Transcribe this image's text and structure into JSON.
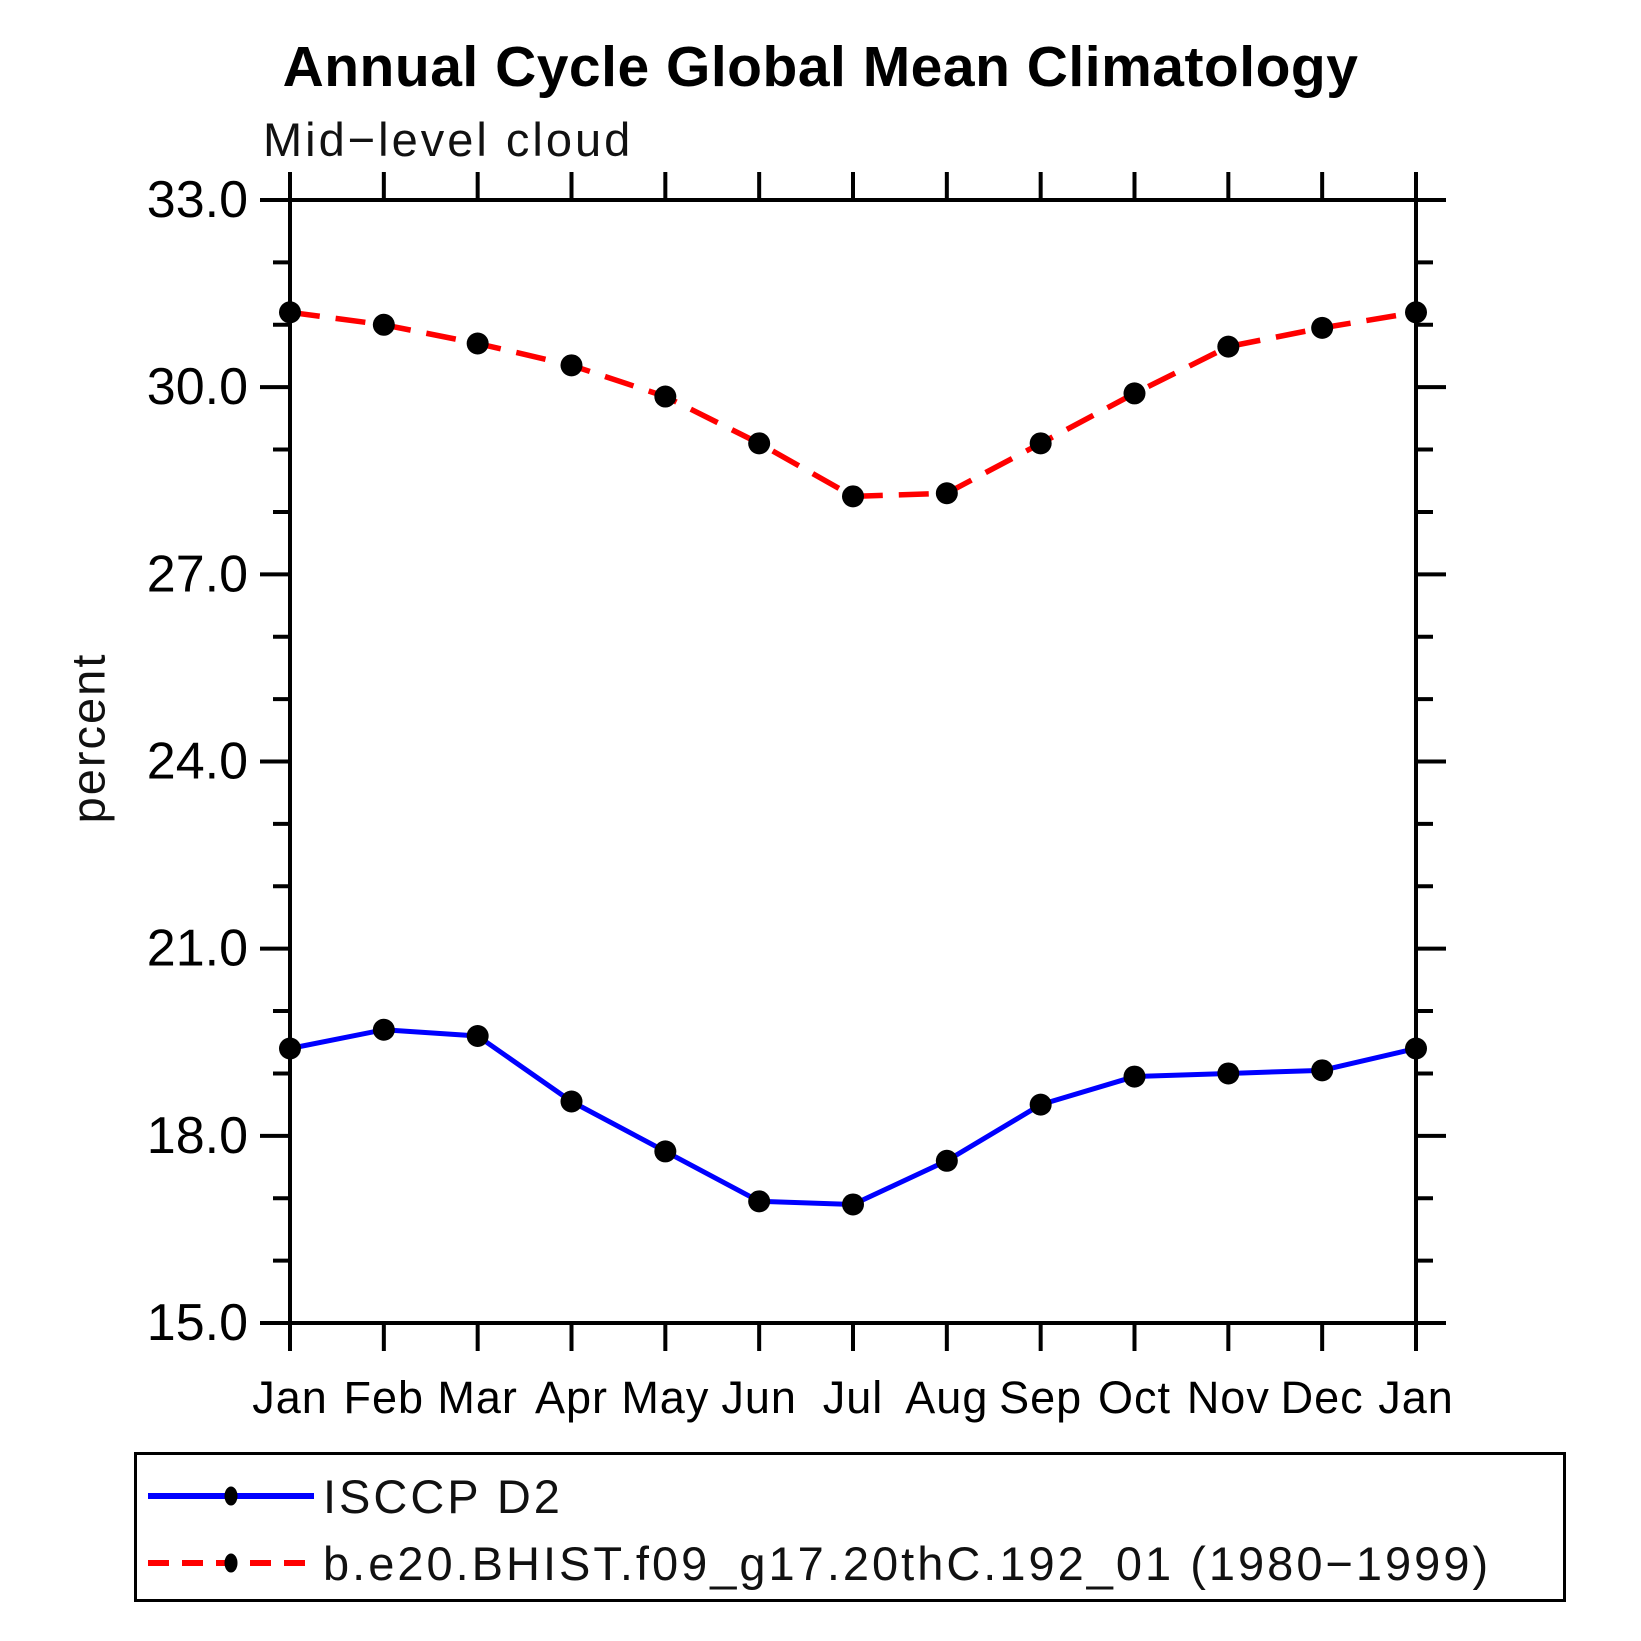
{
  "chart_data": {
    "type": "line",
    "title": "Annual Cycle Global Mean Climatology",
    "subtitle": "Mid−level cloud",
    "ylabel": "percent",
    "x_tick_labels": [
      "Jan",
      "Feb",
      "Mar",
      "Apr",
      "May",
      "Jun",
      "Jul",
      "Aug",
      "Sep",
      "Oct",
      "Nov",
      "Dec",
      "Jan"
    ],
    "ylim": [
      15.0,
      33.0
    ],
    "y_major_ticks": [
      15,
      18,
      21,
      24,
      27,
      30,
      33
    ],
    "y_tick_labels": [
      "15.0",
      "18.0",
      "21.0",
      "24.0",
      "27.0",
      "30.0",
      "33.0"
    ],
    "y_minor_step": 1,
    "grid": false,
    "legend_position": "bottom",
    "frame_color": "#000000",
    "series": [
      {
        "name": "ISCCP D2",
        "color": "#0000ff",
        "line_style": "solid",
        "marker": "filled-circle",
        "marker_color": "#000000",
        "values": [
          19.4,
          19.7,
          19.6,
          18.55,
          17.75,
          16.95,
          16.9,
          17.6,
          18.5,
          18.95,
          19.0,
          19.05,
          19.4
        ]
      },
      {
        "name": "b.e20.BHIST.f09_g17.20thC.192_01 (1980−1999)",
        "color": "#ff0000",
        "line_style": "dashed",
        "marker": "filled-circle",
        "marker_color": "#000000",
        "values": [
          31.2,
          31.0,
          30.7,
          30.35,
          29.85,
          29.1,
          28.25,
          28.3,
          29.1,
          29.9,
          30.65,
          30.95,
          31.2
        ]
      }
    ]
  }
}
